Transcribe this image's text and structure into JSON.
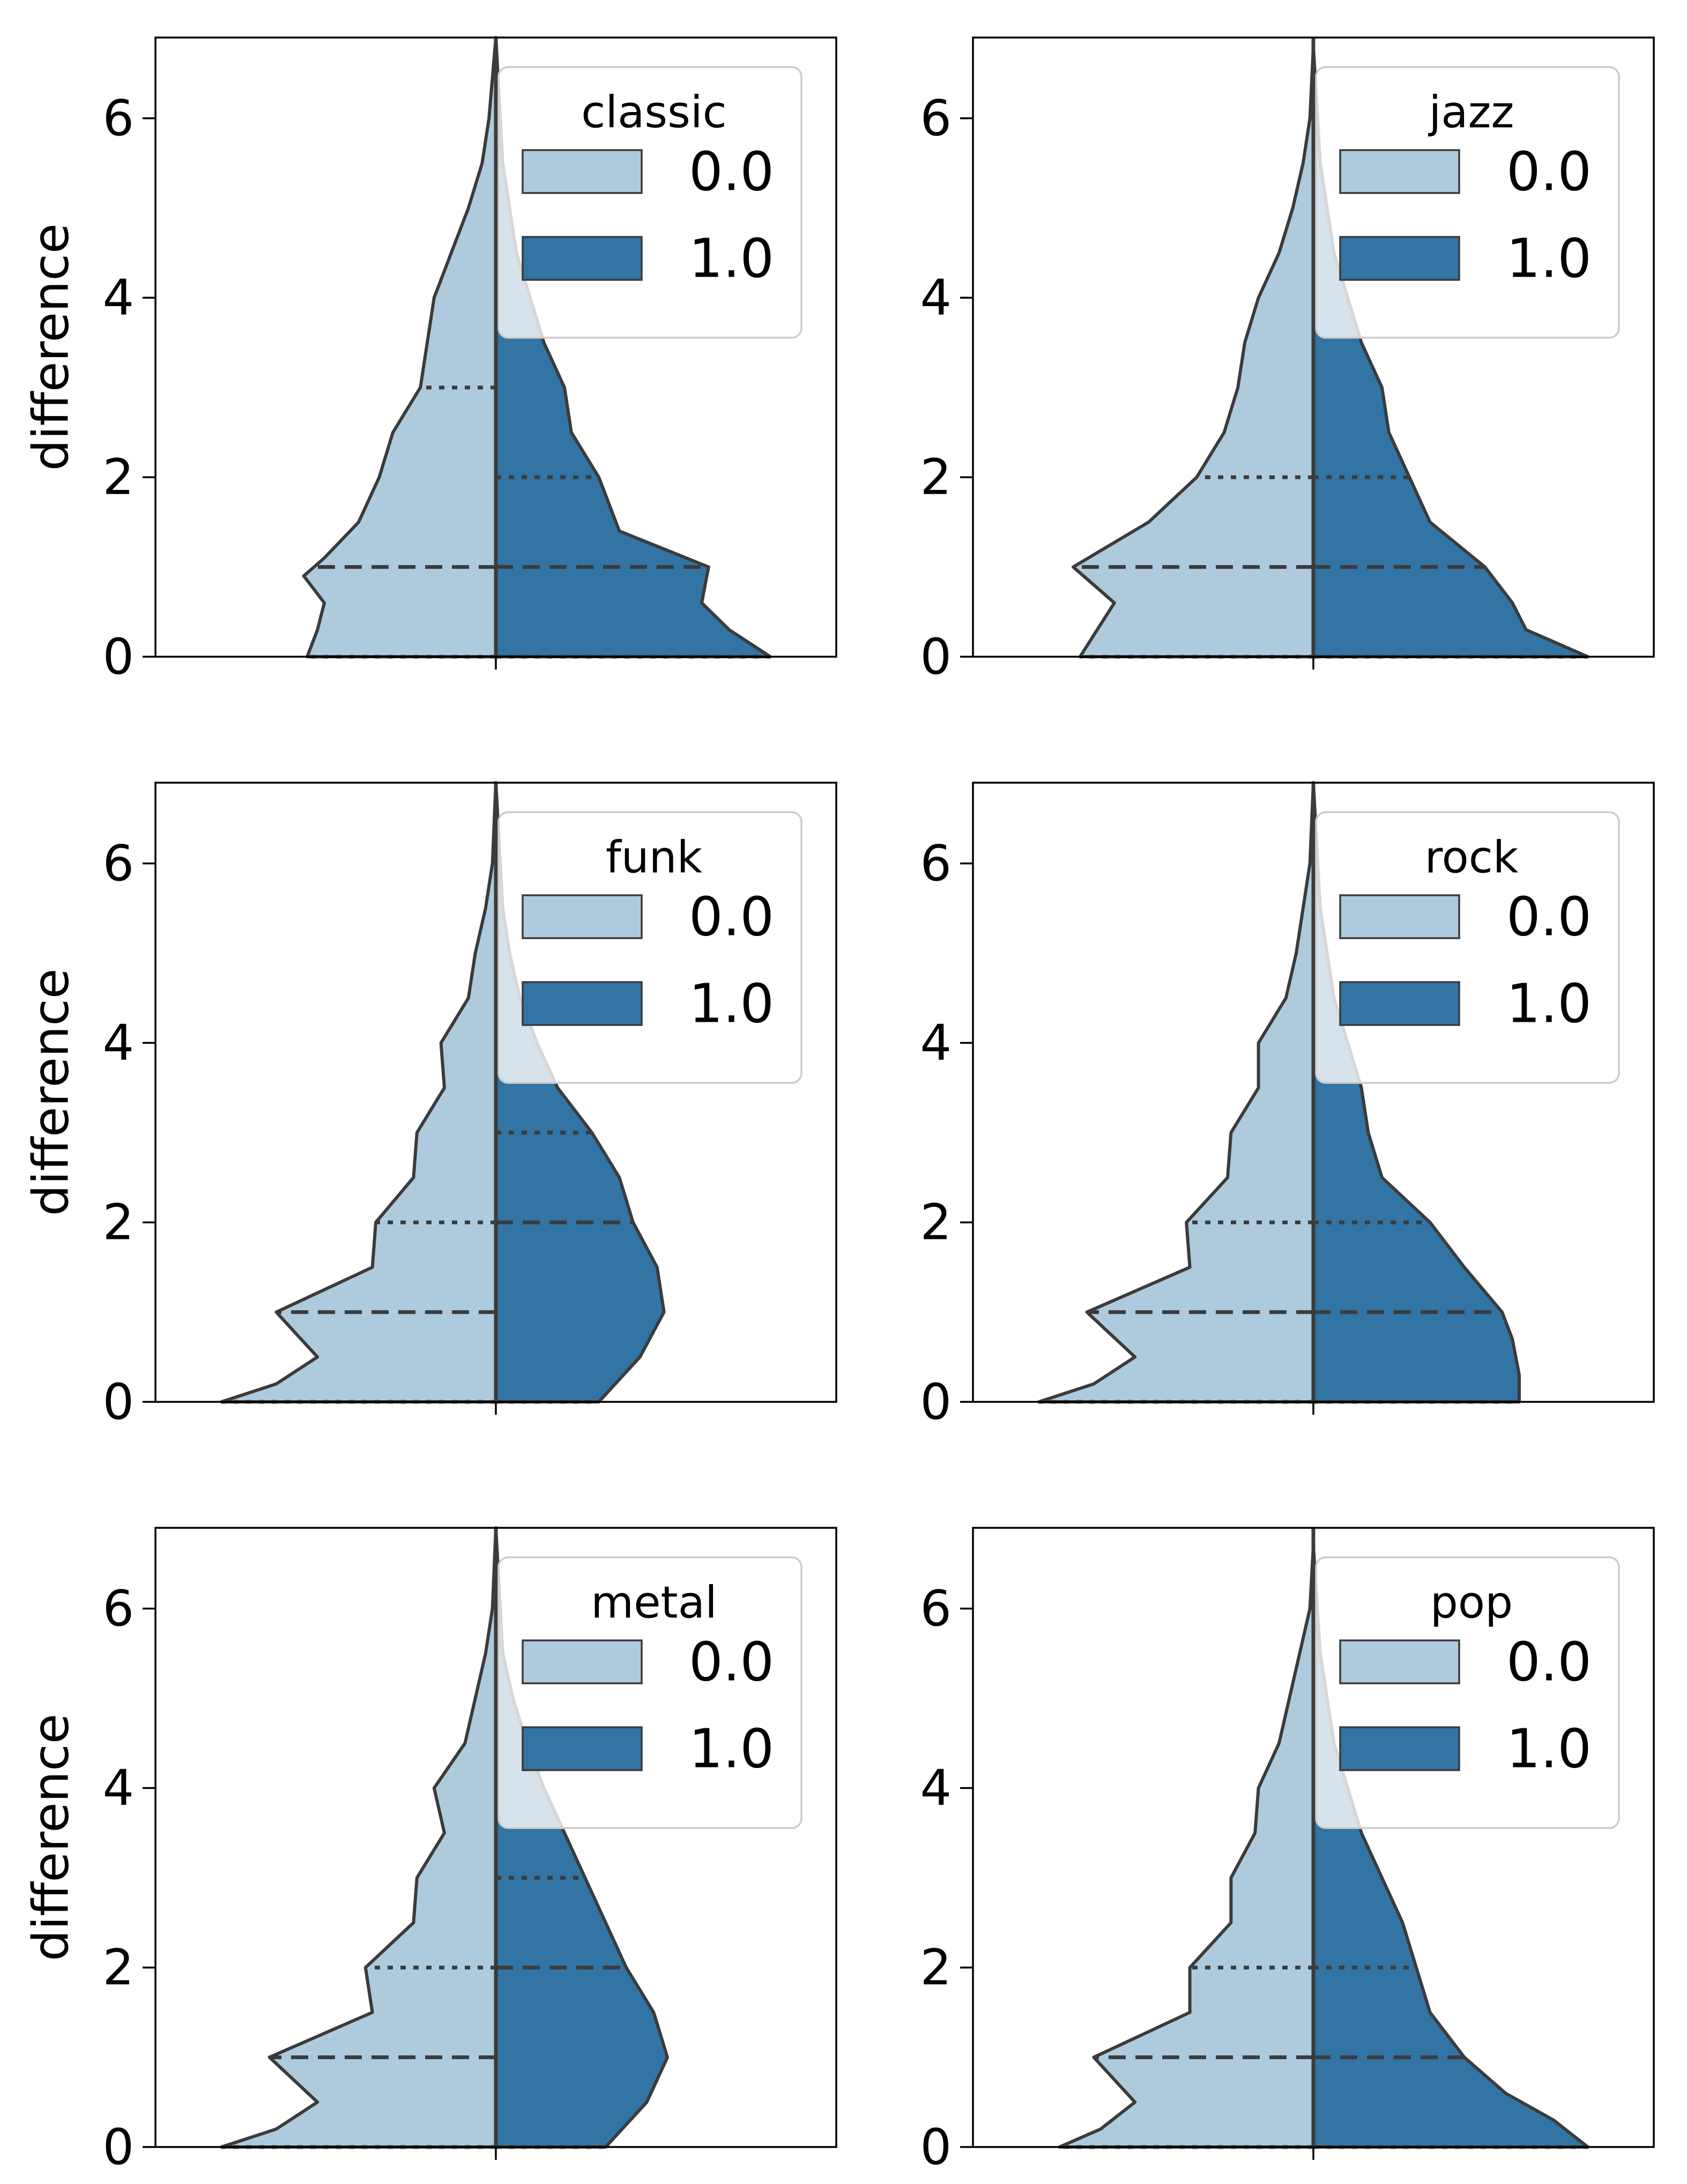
{
  "figure": {
    "colors": {
      "light": "#aecbdd",
      "dark": "#3274a3",
      "edge": "#3b3b3b",
      "legend_bg": "#ffffff",
      "legend_border": "#cccccc"
    }
  },
  "chart_data": [
    {
      "type": "violin",
      "split": true,
      "legend_title": "classic",
      "legend_labels": [
        "0.0",
        "1.0"
      ],
      "ylabel": "difference",
      "yticks": [
        0,
        2,
        4,
        6
      ],
      "ylim": [
        0,
        6.9
      ],
      "xticks": [
        ""
      ],
      "series": [
        {
          "name": "0.0",
          "density": [
            [
              0,
              0.55
            ],
            [
              0.3,
              0.52
            ],
            [
              0.6,
              0.5
            ],
            [
              0.9,
              0.56
            ],
            [
              1.1,
              0.5
            ],
            [
              1.5,
              0.4
            ],
            [
              2.0,
              0.34
            ],
            [
              2.5,
              0.3
            ],
            [
              3.0,
              0.22
            ],
            [
              3.5,
              0.2
            ],
            [
              4.0,
              0.18
            ],
            [
              4.5,
              0.13
            ],
            [
              5.0,
              0.08
            ],
            [
              5.5,
              0.04
            ],
            [
              6.0,
              0.02
            ],
            [
              6.9,
              0.0
            ]
          ],
          "quartiles": [
            0,
            1,
            3
          ]
        },
        {
          "name": "1.0",
          "density": [
            [
              0,
              0.8
            ],
            [
              0.3,
              0.68
            ],
            [
              0.6,
              0.6
            ],
            [
              1.0,
              0.62
            ],
            [
              1.4,
              0.36
            ],
            [
              2.0,
              0.3
            ],
            [
              2.5,
              0.22
            ],
            [
              3.0,
              0.2
            ],
            [
              3.5,
              0.14
            ],
            [
              4.0,
              0.1
            ],
            [
              4.5,
              0.06
            ],
            [
              5.0,
              0.04
            ],
            [
              5.5,
              0.02
            ],
            [
              6.9,
              0.0
            ]
          ],
          "quartiles": [
            0,
            1,
            2
          ]
        }
      ]
    },
    {
      "type": "violin",
      "split": true,
      "legend_title": "jazz",
      "legend_labels": [
        "0.0",
        "1.0"
      ],
      "ylabel": "",
      "yticks": [
        0,
        2,
        4,
        6
      ],
      "ylim": [
        0,
        6.9
      ],
      "xticks": [
        ""
      ],
      "series": [
        {
          "name": "0.0",
          "density": [
            [
              0,
              0.68
            ],
            [
              0.3,
              0.63
            ],
            [
              0.6,
              0.58
            ],
            [
              1.0,
              0.7
            ],
            [
              1.5,
              0.48
            ],
            [
              2.0,
              0.34
            ],
            [
              2.5,
              0.26
            ],
            [
              3.0,
              0.22
            ],
            [
              3.5,
              0.2
            ],
            [
              4.0,
              0.16
            ],
            [
              4.5,
              0.1
            ],
            [
              5.0,
              0.06
            ],
            [
              5.5,
              0.03
            ],
            [
              6.0,
              0.01
            ],
            [
              6.8,
              0.0
            ]
          ],
          "quartiles": [
            0,
            1,
            2
          ]
        },
        {
          "name": "1.0",
          "density": [
            [
              0,
              0.8
            ],
            [
              0.3,
              0.62
            ],
            [
              0.6,
              0.58
            ],
            [
              1.0,
              0.5
            ],
            [
              1.5,
              0.34
            ],
            [
              2.0,
              0.28
            ],
            [
              2.5,
              0.22
            ],
            [
              3.0,
              0.2
            ],
            [
              3.5,
              0.14
            ],
            [
              4.0,
              0.1
            ],
            [
              4.5,
              0.06
            ],
            [
              5.0,
              0.04
            ],
            [
              5.5,
              0.02
            ],
            [
              6.8,
              0.0
            ]
          ],
          "quartiles": [
            0,
            1,
            2
          ]
        }
      ]
    },
    {
      "type": "violin",
      "split": true,
      "legend_title": "funk",
      "legend_labels": [
        "0.0",
        "1.0"
      ],
      "ylabel": "difference",
      "yticks": [
        0,
        2,
        4,
        6
      ],
      "ylim": [
        0,
        6.9
      ],
      "xticks": [
        ""
      ],
      "series": [
        {
          "name": "0.0",
          "density": [
            [
              0,
              0.8
            ],
            [
              0.2,
              0.64
            ],
            [
              0.5,
              0.52
            ],
            [
              1.0,
              0.64
            ],
            [
              1.5,
              0.36
            ],
            [
              2.0,
              0.35
            ],
            [
              2.5,
              0.24
            ],
            [
              3.0,
              0.23
            ],
            [
              3.5,
              0.15
            ],
            [
              4.0,
              0.16
            ],
            [
              4.5,
              0.08
            ],
            [
              5.0,
              0.06
            ],
            [
              5.5,
              0.03
            ],
            [
              6.0,
              0.01
            ],
            [
              6.9,
              0.0
            ]
          ],
          "quartiles": [
            0,
            1,
            2
          ]
        },
        {
          "name": "1.0",
          "density": [
            [
              0,
              0.3
            ],
            [
              0.5,
              0.42
            ],
            [
              1.0,
              0.49
            ],
            [
              1.5,
              0.47
            ],
            [
              2.0,
              0.4
            ],
            [
              2.5,
              0.36
            ],
            [
              3.0,
              0.28
            ],
            [
              3.5,
              0.18
            ],
            [
              4.0,
              0.12
            ],
            [
              4.5,
              0.07
            ],
            [
              5.0,
              0.04
            ],
            [
              5.5,
              0.02
            ],
            [
              6.9,
              0.0
            ]
          ],
          "quartiles": [
            0,
            2,
            3
          ]
        }
      ]
    },
    {
      "type": "violin",
      "split": true,
      "legend_title": "rock",
      "legend_labels": [
        "0.0",
        "1.0"
      ],
      "ylabel": "",
      "yticks": [
        0,
        2,
        4,
        6
      ],
      "ylim": [
        0,
        6.9
      ],
      "xticks": [
        ""
      ],
      "series": [
        {
          "name": "0.0",
          "density": [
            [
              0,
              0.8
            ],
            [
              0.2,
              0.64
            ],
            [
              0.5,
              0.52
            ],
            [
              1.0,
              0.66
            ],
            [
              1.5,
              0.36
            ],
            [
              2.0,
              0.37
            ],
            [
              2.5,
              0.25
            ],
            [
              3.0,
              0.24
            ],
            [
              3.5,
              0.16
            ],
            [
              4.0,
              0.16
            ],
            [
              4.5,
              0.08
            ],
            [
              5.0,
              0.05
            ],
            [
              5.5,
              0.03
            ],
            [
              6.0,
              0.01
            ],
            [
              6.9,
              0.0
            ]
          ],
          "quartiles": [
            0,
            1,
            2
          ]
        },
        {
          "name": "1.0",
          "density": [
            [
              0,
              0.6
            ],
            [
              0.3,
              0.6
            ],
            [
              0.7,
              0.58
            ],
            [
              1.0,
              0.55
            ],
            [
              1.5,
              0.44
            ],
            [
              2.0,
              0.34
            ],
            [
              2.5,
              0.2
            ],
            [
              3.0,
              0.16
            ],
            [
              3.5,
              0.14
            ],
            [
              4.0,
              0.1
            ],
            [
              4.5,
              0.06
            ],
            [
              5.0,
              0.04
            ],
            [
              5.5,
              0.02
            ],
            [
              6.9,
              0.0
            ]
          ],
          "quartiles": [
            0,
            1,
            2
          ]
        }
      ]
    },
    {
      "type": "violin",
      "split": true,
      "legend_title": "metal",
      "legend_labels": [
        "0.0",
        "1.0"
      ],
      "ylabel": "difference",
      "yticks": [
        0,
        2,
        4,
        6
      ],
      "ylim": [
        0,
        6.9
      ],
      "xticks": [
        ""
      ],
      "series": [
        {
          "name": "0.0",
          "density": [
            [
              0,
              0.8
            ],
            [
              0.2,
              0.64
            ],
            [
              0.5,
              0.52
            ],
            [
              1.0,
              0.66
            ],
            [
              1.5,
              0.36
            ],
            [
              2.0,
              0.38
            ],
            [
              2.5,
              0.24
            ],
            [
              3.0,
              0.23
            ],
            [
              3.5,
              0.15
            ],
            [
              4.0,
              0.18
            ],
            [
              4.5,
              0.09
            ],
            [
              5.0,
              0.06
            ],
            [
              5.5,
              0.03
            ],
            [
              6.0,
              0.01
            ],
            [
              6.9,
              0.0
            ]
          ],
          "quartiles": [
            0,
            1,
            2
          ]
        },
        {
          "name": "1.0",
          "density": [
            [
              0,
              0.32
            ],
            [
              0.5,
              0.44
            ],
            [
              1.0,
              0.5
            ],
            [
              1.5,
              0.46
            ],
            [
              2.0,
              0.38
            ],
            [
              2.5,
              0.32
            ],
            [
              3.0,
              0.26
            ],
            [
              3.5,
              0.2
            ],
            [
              4.0,
              0.14
            ],
            [
              4.5,
              0.09
            ],
            [
              5.0,
              0.05
            ],
            [
              5.5,
              0.02
            ],
            [
              6.9,
              0.0
            ]
          ],
          "quartiles": [
            0,
            2,
            3
          ]
        }
      ]
    },
    {
      "type": "violin",
      "split": true,
      "legend_title": "pop",
      "legend_labels": [
        "0.0",
        "1.0"
      ],
      "ylabel": "",
      "yticks": [
        0,
        2,
        4,
        6
      ],
      "ylim": [
        0,
        6.9
      ],
      "xticks": [
        ""
      ],
      "series": [
        {
          "name": "0.0",
          "density": [
            [
              0,
              0.74
            ],
            [
              0.2,
              0.62
            ],
            [
              0.5,
              0.52
            ],
            [
              1.0,
              0.64
            ],
            [
              1.5,
              0.36
            ],
            [
              2.0,
              0.36
            ],
            [
              2.5,
              0.24
            ],
            [
              3.0,
              0.24
            ],
            [
              3.5,
              0.17
            ],
            [
              4.0,
              0.16
            ],
            [
              4.5,
              0.1
            ],
            [
              5.0,
              0.07
            ],
            [
              5.5,
              0.04
            ],
            [
              6.0,
              0.01
            ],
            [
              6.7,
              0.0
            ]
          ],
          "quartiles": [
            0,
            1,
            2
          ]
        },
        {
          "name": "1.0",
          "density": [
            [
              0,
              0.8
            ],
            [
              0.3,
              0.7
            ],
            [
              0.6,
              0.56
            ],
            [
              1.0,
              0.44
            ],
            [
              1.5,
              0.34
            ],
            [
              2.0,
              0.3
            ],
            [
              2.5,
              0.26
            ],
            [
              3.0,
              0.2
            ],
            [
              3.5,
              0.14
            ],
            [
              4.0,
              0.1
            ],
            [
              4.5,
              0.06
            ],
            [
              5.0,
              0.04
            ],
            [
              5.5,
              0.02
            ],
            [
              6.7,
              0.0
            ]
          ],
          "quartiles": [
            0,
            1,
            2
          ]
        }
      ]
    }
  ]
}
